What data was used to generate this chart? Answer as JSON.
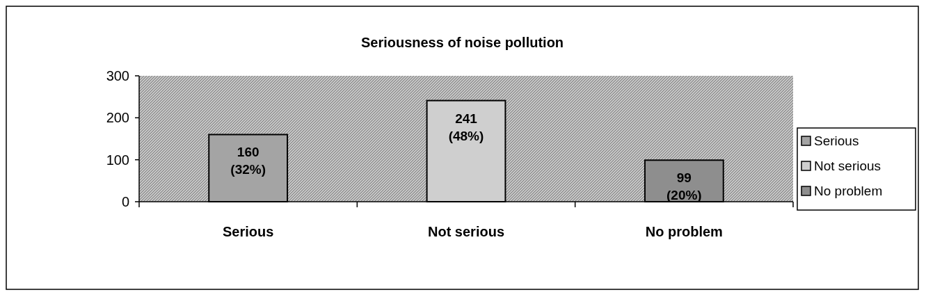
{
  "chart_data": {
    "type": "bar",
    "title": "Seriousness of noise pollution",
    "categories": [
      "Serious",
      "Not serious",
      "No problem"
    ],
    "series": [
      {
        "name": "Serious",
        "color": "#a4a4a4",
        "values": [
          160,
          null,
          null
        ],
        "value_labels": [
          "160 (32%)",
          null,
          null
        ]
      },
      {
        "name": "Not serious",
        "color": "#cfcfcf",
        "values": [
          null,
          241,
          null
        ],
        "value_labels": [
          null,
          "241 (48%)",
          null
        ]
      },
      {
        "name": "No problem",
        "color": "#8e8e8e",
        "values": [
          null,
          null,
          99
        ],
        "value_labels": [
          null,
          null,
          "99 (20%)"
        ]
      }
    ],
    "ylim": [
      0,
      300
    ],
    "yticks": [
      0,
      100,
      200,
      300
    ],
    "grid": false,
    "legend": "right"
  }
}
